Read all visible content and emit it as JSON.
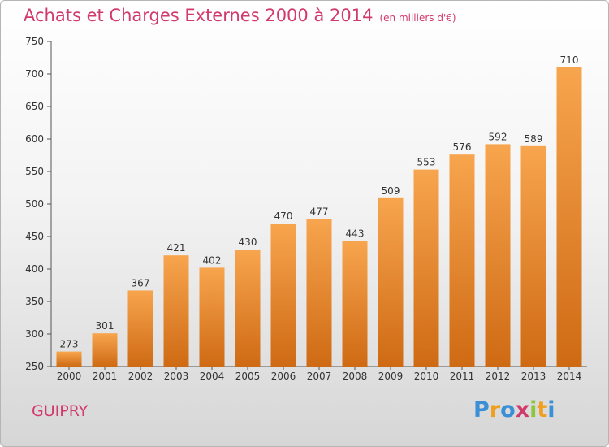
{
  "title": "Achats et Charges Externes 2000 à 2014",
  "subtitle": "(en milliers d'€)",
  "location": "GUIPRY",
  "logo": {
    "letters": [
      "P",
      "r",
      "o",
      "x",
      "i",
      "t",
      "i"
    ],
    "colors": [
      "#3a8fd6",
      "#f0a020",
      "#3a8fd6",
      "#d23a6d",
      "#8cc63f",
      "#f0a020",
      "#3a8fd6"
    ]
  },
  "colors": {
    "bar_light": "#f7a54e",
    "bar_dark": "#cf6a14",
    "accent": "#d23a6d",
    "axis": "#555555"
  },
  "chart_data": {
    "type": "bar",
    "title": "Achats et Charges Externes 2000 à 2014",
    "subtitle": "(en milliers d'€)",
    "categories": [
      "2000",
      "2001",
      "2002",
      "2003",
      "2004",
      "2005",
      "2006",
      "2007",
      "2008",
      "2009",
      "2010",
      "2011",
      "2012",
      "2013",
      "2014"
    ],
    "values": [
      273,
      301,
      367,
      421,
      402,
      430,
      470,
      477,
      443,
      509,
      553,
      576,
      592,
      589,
      710
    ],
    "ylim": [
      250,
      750
    ],
    "yticks": [
      250,
      300,
      350,
      400,
      450,
      500,
      550,
      600,
      650,
      700,
      750
    ],
    "grid": false,
    "data_labels": true
  }
}
